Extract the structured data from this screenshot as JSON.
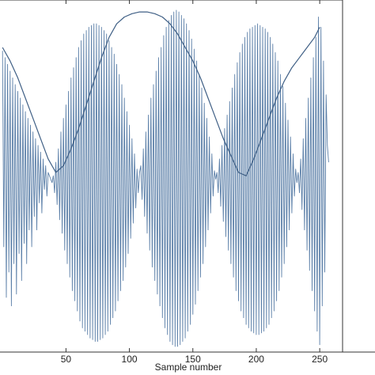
{
  "chart_data": {
    "type": "line",
    "title": "",
    "xlabel": "Sample number",
    "ylabel": "",
    "xlim": [
      -2,
      268
    ],
    "ylim": [
      -1,
      1
    ],
    "xticks": [
      50,
      100,
      150,
      200,
      250
    ],
    "xtick_labels": [
      "50",
      "100",
      "150",
      "200",
      "250"
    ],
    "grid": false,
    "colors": {
      "signal": "#5b7fa8",
      "envelope": "#3f5f85",
      "axes": "#333333"
    },
    "series": [
      {
        "points": [
          [
            0,
            0.76
          ],
          [
            1,
            -0.4
          ],
          [
            2,
            0.72
          ],
          [
            3,
            -0.7
          ],
          [
            4,
            0.68
          ],
          [
            5,
            -0.55
          ],
          [
            6,
            0.64
          ],
          [
            7,
            -0.75
          ],
          [
            8,
            0.6
          ],
          [
            9,
            -0.5
          ],
          [
            10,
            0.56
          ],
          [
            11,
            -0.68
          ],
          [
            12,
            0.52
          ],
          [
            13,
            -0.44
          ],
          [
            14,
            0.48
          ],
          [
            15,
            -0.6
          ],
          [
            16,
            0.44
          ],
          [
            17,
            -0.38
          ],
          [
            18,
            0.4
          ],
          [
            19,
            -0.5
          ],
          [
            20,
            0.36
          ],
          [
            21,
            -0.3
          ],
          [
            22,
            0.32
          ],
          [
            23,
            -0.4
          ],
          [
            24,
            0.28
          ],
          [
            25,
            -0.22
          ],
          [
            26,
            0.24
          ],
          [
            27,
            -0.3
          ],
          [
            28,
            0.2
          ],
          [
            29,
            -0.14
          ],
          [
            30,
            0.16
          ],
          [
            31,
            -0.2
          ],
          [
            32,
            0.12
          ],
          [
            33,
            -0.06
          ],
          [
            34,
            0.08
          ],
          [
            35,
            -0.1
          ],
          [
            36,
            0.04
          ],
          [
            37,
            0.02
          ],
          [
            38,
            0.0
          ],
          [
            39,
            -0.02
          ],
          [
            40,
            0.02
          ],
          [
            41,
            -0.08
          ],
          [
            42,
            0.1
          ],
          [
            43,
            -0.15
          ],
          [
            44,
            0.18
          ],
          [
            45,
            -0.24
          ],
          [
            46,
            0.28
          ],
          [
            47,
            -0.32
          ],
          [
            48,
            0.36
          ],
          [
            49,
            -0.42
          ],
          [
            50,
            0.44
          ],
          [
            51,
            -0.5
          ],
          [
            52,
            0.52
          ],
          [
            53,
            -0.58
          ],
          [
            54,
            0.6
          ],
          [
            55,
            -0.66
          ],
          [
            56,
            0.66
          ],
          [
            57,
            -0.72
          ],
          [
            58,
            0.72
          ],
          [
            59,
            -0.78
          ],
          [
            60,
            0.78
          ],
          [
            61,
            -0.84
          ],
          [
            62,
            0.82
          ],
          [
            63,
            -0.88
          ],
          [
            64,
            0.86
          ],
          [
            65,
            -0.9
          ],
          [
            66,
            0.88
          ],
          [
            67,
            -0.92
          ],
          [
            68,
            0.9
          ],
          [
            69,
            -0.94
          ],
          [
            70,
            0.91
          ],
          [
            71,
            -0.95
          ],
          [
            72,
            0.92
          ],
          [
            73,
            -0.96
          ],
          [
            74,
            0.92
          ],
          [
            75,
            -0.96
          ],
          [
            76,
            0.91
          ],
          [
            77,
            -0.95
          ],
          [
            78,
            0.9
          ],
          [
            79,
            -0.94
          ],
          [
            80,
            0.88
          ],
          [
            81,
            -0.92
          ],
          [
            82,
            0.86
          ],
          [
            83,
            -0.9
          ],
          [
            84,
            0.82
          ],
          [
            85,
            -0.86
          ],
          [
            86,
            0.78
          ],
          [
            87,
            -0.82
          ],
          [
            88,
            0.74
          ],
          [
            89,
            -0.78
          ],
          [
            90,
            0.68
          ],
          [
            91,
            -0.72
          ],
          [
            92,
            0.62
          ],
          [
            93,
            -0.66
          ],
          [
            94,
            0.56
          ],
          [
            95,
            -0.6
          ],
          [
            96,
            0.48
          ],
          [
            97,
            -0.52
          ],
          [
            98,
            0.4
          ],
          [
            99,
            -0.44
          ],
          [
            100,
            0.32
          ],
          [
            101,
            -0.35
          ],
          [
            102,
            0.24
          ],
          [
            103,
            -0.26
          ],
          [
            104,
            0.15
          ],
          [
            105,
            -0.17
          ],
          [
            106,
            0.06
          ],
          [
            107,
            -0.08
          ],
          [
            108,
            0.04
          ],
          [
            109,
            0.08
          ],
          [
            110,
            -0.12
          ],
          [
            111,
            0.18
          ],
          [
            112,
            -0.22
          ],
          [
            113,
            0.28
          ],
          [
            114,
            -0.32
          ],
          [
            115,
            0.38
          ],
          [
            116,
            -0.42
          ],
          [
            117,
            0.48
          ],
          [
            118,
            -0.52
          ],
          [
            119,
            0.56
          ],
          [
            120,
            -0.6
          ],
          [
            121,
            0.64
          ],
          [
            122,
            -0.68
          ],
          [
            123,
            0.72
          ],
          [
            124,
            -0.75
          ],
          [
            125,
            0.78
          ],
          [
            126,
            -0.82
          ],
          [
            127,
            0.85
          ],
          [
            128,
            -0.88
          ],
          [
            129,
            0.9
          ],
          [
            130,
            -0.92
          ],
          [
            131,
            0.94
          ],
          [
            132,
            -0.96
          ],
          [
            133,
            0.97
          ],
          [
            134,
            -0.98
          ],
          [
            135,
            0.99
          ],
          [
            136,
            -0.99
          ],
          [
            137,
            1.0
          ],
          [
            138,
            -0.99
          ],
          [
            139,
            0.99
          ],
          [
            140,
            -0.98
          ],
          [
            141,
            0.97
          ],
          [
            142,
            -0.96
          ],
          [
            143,
            0.95
          ],
          [
            144,
            -0.94
          ],
          [
            145,
            0.92
          ],
          [
            146,
            -0.9
          ],
          [
            147,
            0.88
          ],
          [
            148,
            -0.86
          ],
          [
            149,
            0.83
          ],
          [
            150,
            -0.8
          ],
          [
            151,
            0.77
          ],
          [
            152,
            -0.74
          ],
          [
            153,
            0.7
          ],
          [
            154,
            -0.66
          ],
          [
            155,
            0.62
          ],
          [
            156,
            -0.58
          ],
          [
            157,
            0.54
          ],
          [
            158,
            -0.5
          ],
          [
            159,
            0.45
          ],
          [
            160,
            -0.4
          ],
          [
            161,
            0.36
          ],
          [
            162,
            -0.3
          ],
          [
            163,
            0.25
          ],
          [
            164,
            -0.2
          ],
          [
            165,
            0.15
          ],
          [
            166,
            -0.1
          ],
          [
            167,
            0.05
          ],
          [
            168,
            0.0
          ],
          [
            169,
            0.04
          ],
          [
            170,
            -0.08
          ],
          [
            171,
            0.12
          ],
          [
            172,
            -0.16
          ],
          [
            173,
            0.2
          ],
          [
            174,
            -0.25
          ],
          [
            175,
            0.3
          ],
          [
            176,
            -0.34
          ],
          [
            177,
            0.38
          ],
          [
            178,
            -0.42
          ],
          [
            179,
            0.46
          ],
          [
            180,
            -0.5
          ],
          [
            181,
            0.54
          ],
          [
            182,
            -0.58
          ],
          [
            183,
            0.62
          ],
          [
            184,
            -0.66
          ],
          [
            185,
            0.69
          ],
          [
            186,
            -0.72
          ],
          [
            187,
            0.75
          ],
          [
            188,
            -0.78
          ],
          [
            189,
            0.8
          ],
          [
            190,
            -0.82
          ],
          [
            191,
            0.84
          ],
          [
            192,
            -0.86
          ],
          [
            193,
            0.87
          ],
          [
            194,
            -0.88
          ],
          [
            195,
            0.89
          ],
          [
            196,
            -0.9
          ],
          [
            197,
            0.9
          ],
          [
            198,
            -0.91
          ],
          [
            199,
            0.91
          ],
          [
            200,
            -0.92
          ],
          [
            201,
            0.92
          ],
          [
            202,
            -0.92
          ],
          [
            203,
            0.91
          ],
          [
            204,
            -0.91
          ],
          [
            205,
            0.9
          ],
          [
            206,
            -0.9
          ],
          [
            207,
            0.89
          ],
          [
            208,
            -0.88
          ],
          [
            209,
            0.87
          ],
          [
            210,
            -0.86
          ],
          [
            211,
            0.84
          ],
          [
            212,
            -0.82
          ],
          [
            213,
            0.8
          ],
          [
            214,
            -0.78
          ],
          [
            215,
            0.75
          ],
          [
            216,
            -0.72
          ],
          [
            217,
            0.7
          ],
          [
            218,
            -0.66
          ],
          [
            219,
            0.62
          ],
          [
            220,
            -0.58
          ],
          [
            221,
            0.55
          ],
          [
            222,
            -0.5
          ],
          [
            223,
            0.45
          ],
          [
            224,
            -0.4
          ],
          [
            225,
            0.35
          ],
          [
            226,
            -0.3
          ],
          [
            227,
            0.25
          ],
          [
            228,
            -0.2
          ],
          [
            229,
            0.15
          ],
          [
            230,
            -0.1
          ],
          [
            231,
            0.06
          ],
          [
            232,
            -0.02
          ],
          [
            233,
            0.04
          ],
          [
            234,
            -0.08
          ],
          [
            235,
            0.12
          ],
          [
            236,
            -0.18
          ],
          [
            237,
            0.24
          ],
          [
            238,
            -0.3
          ],
          [
            239,
            0.36
          ],
          [
            240,
            -0.42
          ],
          [
            241,
            0.48
          ],
          [
            242,
            -0.54
          ],
          [
            243,
            0.6
          ],
          [
            244,
            -0.66
          ],
          [
            245,
            0.72
          ],
          [
            246,
            -0.78
          ],
          [
            247,
            0.84
          ],
          [
            248,
            -0.9
          ],
          [
            249,
            0.96
          ],
          [
            250,
            -0.98
          ],
          [
            251,
            0.9
          ],
          [
            252,
            -0.75
          ],
          [
            253,
            0.7
          ],
          [
            254,
            -0.55
          ],
          [
            255,
            0.5
          ],
          [
            256,
            0.2
          ],
          [
            257,
            0.1
          ]
        ]
      },
      {
        "points": [
          [
            0,
            0.78
          ],
          [
            6,
            0.7
          ],
          [
            12,
            0.6
          ],
          [
            18,
            0.48
          ],
          [
            24,
            0.36
          ],
          [
            30,
            0.24
          ],
          [
            36,
            0.12
          ],
          [
            42,
            0.04
          ],
          [
            48,
            0.08
          ],
          [
            54,
            0.18
          ],
          [
            60,
            0.3
          ],
          [
            66,
            0.44
          ],
          [
            72,
            0.58
          ],
          [
            78,
            0.72
          ],
          [
            84,
            0.84
          ],
          [
            90,
            0.92
          ],
          [
            96,
            0.96
          ],
          [
            102,
            0.98
          ],
          [
            108,
            0.99
          ],
          [
            114,
            0.99
          ],
          [
            120,
            0.98
          ],
          [
            126,
            0.96
          ],
          [
            132,
            0.92
          ],
          [
            138,
            0.86
          ],
          [
            144,
            0.78
          ],
          [
            150,
            0.7
          ],
          [
            156,
            0.6
          ],
          [
            162,
            0.48
          ],
          [
            168,
            0.36
          ],
          [
            174,
            0.24
          ],
          [
            180,
            0.14
          ],
          [
            186,
            0.04
          ],
          [
            192,
            0.02
          ],
          [
            198,
            0.12
          ],
          [
            204,
            0.24
          ],
          [
            210,
            0.36
          ],
          [
            216,
            0.48
          ],
          [
            222,
            0.58
          ],
          [
            228,
            0.66
          ],
          [
            234,
            0.72
          ],
          [
            240,
            0.78
          ],
          [
            246,
            0.84
          ],
          [
            250,
            0.9
          ]
        ]
      }
    ]
  }
}
